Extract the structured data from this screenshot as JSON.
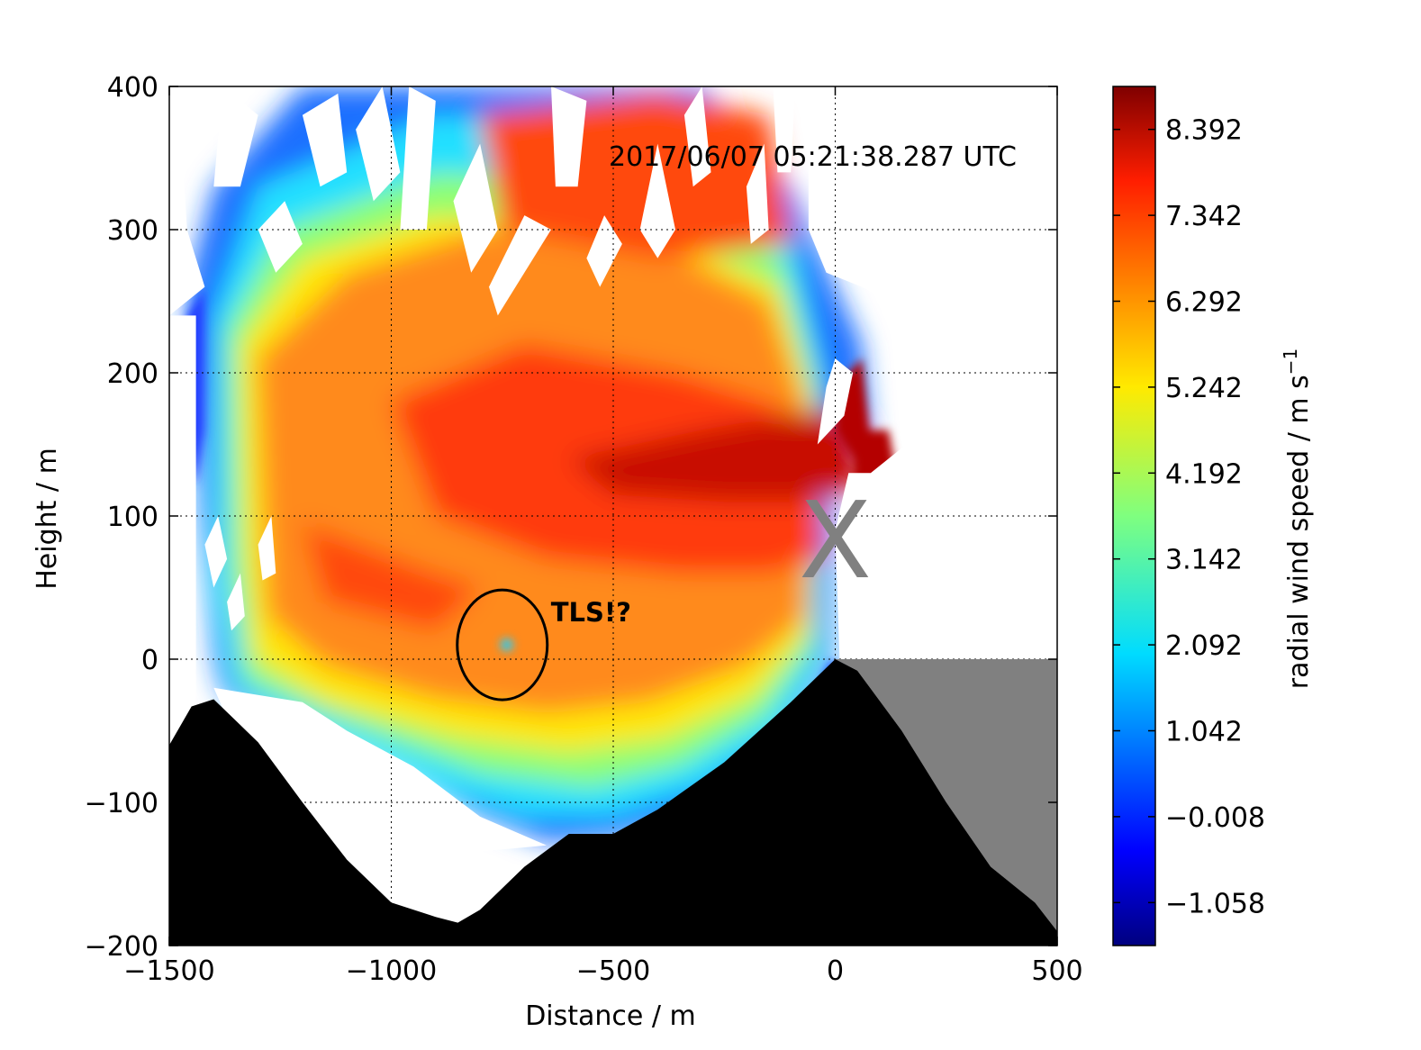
{
  "chart_data": {
    "type": "heatmap",
    "subtype": "radial wind speed cross-section (lidar RHI scan)",
    "timestamp": "2017/06/07 05:21:38.287 UTC",
    "xlabel": "Distance / m",
    "ylabel": "Height / m",
    "xlim": [
      -1500,
      500
    ],
    "ylim": [
      -200,
      400
    ],
    "xticks": [
      "−1500",
      "−1000",
      "−500",
      "0",
      "500"
    ],
    "xtick_values": [
      -1500,
      -1000,
      -500,
      0,
      500
    ],
    "yticks": [
      "−200",
      "−100",
      "0",
      "100",
      "200",
      "300",
      "400"
    ],
    "ytick_values": [
      -200,
      -100,
      0,
      100,
      200,
      300,
      400
    ],
    "grid": "dotted",
    "colorbar": {
      "label": "radial wind speed / m s",
      "label_superscript": "−1",
      "colormap": "jet",
      "range": [
        -1.583,
        8.917
      ],
      "ticks": [
        "8.392",
        "7.342",
        "6.292",
        "5.242",
        "4.192",
        "3.142",
        "2.092",
        "1.042",
        "−0.008",
        "−1.058"
      ],
      "tick_values": [
        8.392,
        7.342,
        6.292,
        5.242,
        4.192,
        3.142,
        2.092,
        1.042,
        -0.008,
        -1.058
      ]
    },
    "annotations": [
      {
        "text": "TLS!?",
        "x": -750,
        "y": 10,
        "shape": "ellipse"
      },
      {
        "text": "X",
        "marker": "instrument-location",
        "x": 0,
        "y": 90
      }
    ],
    "terrain_profile": [
      {
        "x": -1500,
        "y": -60
      },
      {
        "x": -1450,
        "y": -33
      },
      {
        "x": -1400,
        "y": -28
      },
      {
        "x": -1300,
        "y": -58
      },
      {
        "x": -1200,
        "y": -100
      },
      {
        "x": -1100,
        "y": -140
      },
      {
        "x": -1000,
        "y": -170
      },
      {
        "x": -900,
        "y": -180
      },
      {
        "x": -850,
        "y": -184
      },
      {
        "x": -800,
        "y": -175
      },
      {
        "x": -700,
        "y": -145
      },
      {
        "x": -600,
        "y": -122
      },
      {
        "x": -500,
        "y": -122
      },
      {
        "x": -400,
        "y": -105
      },
      {
        "x": -250,
        "y": -72
      },
      {
        "x": -100,
        "y": -30
      },
      {
        "x": 0,
        "y": 0
      },
      {
        "x": 50,
        "y": -8
      },
      {
        "x": 150,
        "y": -50
      },
      {
        "x": 250,
        "y": -100
      },
      {
        "x": 350,
        "y": -145
      },
      {
        "x": 450,
        "y": -170
      },
      {
        "x": 500,
        "y": -190
      }
    ],
    "shadow_region": "gray area right of x = 0 below height 0 (beyond lidar line of sight)",
    "summary": "Strong along-valley flow (6–8.4 m/s) centred near 100–150 m height, weakening toward terrain and near-surface; noisy / masked data above ~250 m."
  }
}
